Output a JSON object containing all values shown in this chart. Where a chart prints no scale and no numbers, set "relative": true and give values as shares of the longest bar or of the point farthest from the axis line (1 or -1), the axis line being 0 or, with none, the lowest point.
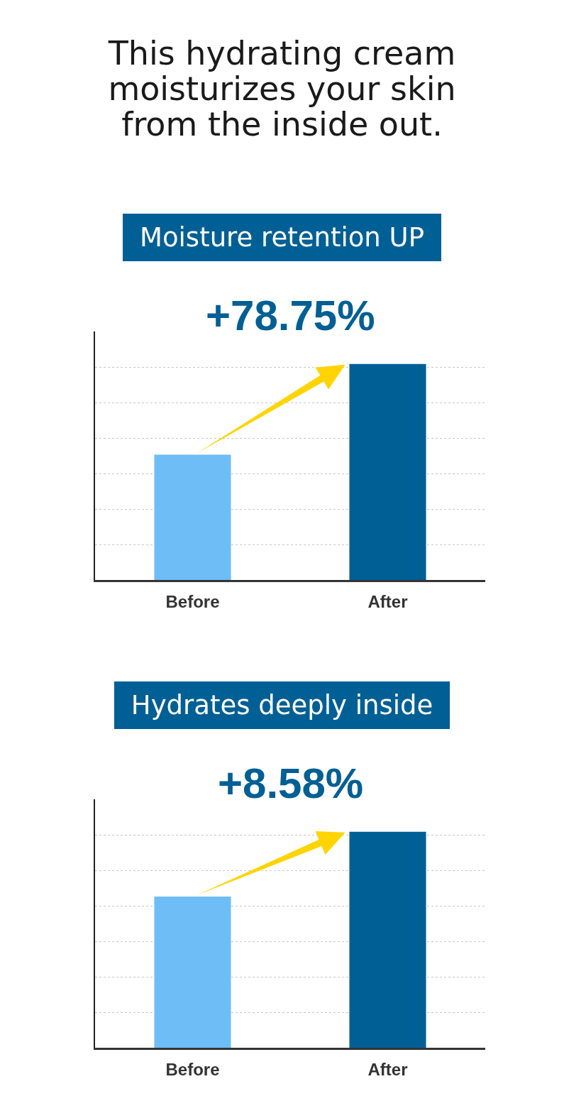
{
  "chart_data": [
    {
      "type": "bar",
      "title": "This hydrating cream moisturizes your skin from the inside out.",
      "subtitle": "Moisture retention UP",
      "annotations": [
        "+78.75%"
      ],
      "categories": [
        "Before",
        "After"
      ],
      "values": [
        0.58,
        1
      ],
      "colors": [
        "#6fbdf6",
        "#005f94"
      ],
      "relative": true,
      "grid": "y"
    },
    {
      "type": "bar",
      "title": "Hydrates deeply inside",
      "annotations": [
        "+8.58%"
      ],
      "categories": [
        "Before",
        "After"
      ],
      "values": [
        0.7,
        1
      ],
      "colors": [
        "#6fbdf6",
        "#005f94"
      ],
      "relative": true,
      "grid": "y"
    }
  ]
}
